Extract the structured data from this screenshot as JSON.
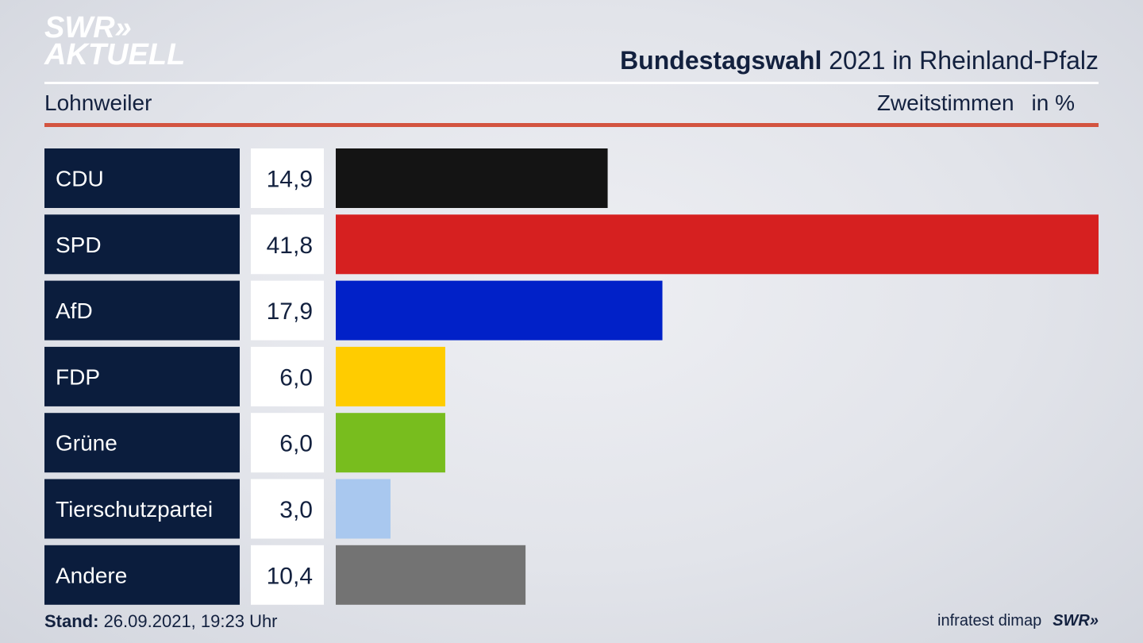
{
  "header": {
    "logo_line1": "SWR»",
    "logo_line2": "AKTUELL",
    "title_bold": "Bundestagswahl",
    "title_rest": " 2021 in Rheinland-Pfalz",
    "location": "Lohnweiler",
    "vote_type": "Zweitstimmen",
    "unit": "in %"
  },
  "footer": {
    "stand_label": "Stand:",
    "stand_value": " 26.09.2021, 19:23 Uhr",
    "source": "infratest dimap",
    "brand": "SWR»"
  },
  "colors": {
    "label_bg": "#0b1d3d",
    "value_bg": "#ffffff"
  },
  "chart_data": {
    "type": "bar",
    "orientation": "horizontal",
    "title": "Bundestagswahl 2021 in Rheinland-Pfalz",
    "subtitle": "Lohnweiler",
    "xlabel": "Zweitstimmen in %",
    "ylabel": "",
    "xlim": [
      0,
      41.8
    ],
    "categories": [
      "CDU",
      "SPD",
      "AfD",
      "FDP",
      "Grüne",
      "Tierschutzpartei",
      "Andere"
    ],
    "values": [
      14.9,
      41.8,
      17.9,
      6.0,
      6.0,
      3.0,
      10.4
    ],
    "value_labels": [
      "14,9",
      "41,8",
      "17,9",
      "6,0",
      "6,0",
      "3,0",
      "10,4"
    ],
    "bar_colors": [
      "#141414",
      "#d62020",
      "#0121c8",
      "#ffcc00",
      "#78bd1e",
      "#a9c8ef",
      "#737373"
    ]
  }
}
